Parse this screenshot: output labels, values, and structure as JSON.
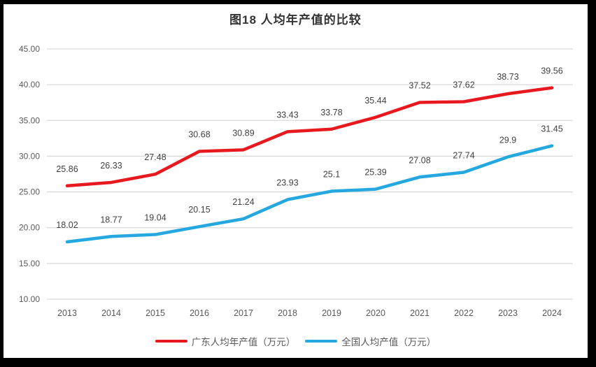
{
  "chart_data": {
    "type": "line",
    "title": "图18 人均年产值的比较",
    "categories": [
      "2013",
      "2014",
      "2015",
      "2016",
      "2017",
      "2018",
      "2019",
      "2020",
      "2021",
      "2022",
      "2023",
      "2024"
    ],
    "series": [
      {
        "name": "广东人均年产值（万元）",
        "color": "#e8191e",
        "values": [
          25.86,
          26.33,
          27.48,
          30.68,
          30.89,
          33.43,
          33.78,
          35.44,
          37.52,
          37.62,
          38.73,
          39.56
        ]
      },
      {
        "name": "全国人均产值（万元）",
        "color": "#25a8e0",
        "values": [
          18.02,
          18.77,
          19.04,
          20.15,
          21.24,
          23.93,
          25.1,
          25.39,
          27.08,
          27.74,
          29.9,
          31.45
        ]
      }
    ],
    "ylim": [
      10,
      45
    ],
    "ytick_step": 5,
    "ytick_labels": [
      "10.00",
      "15.00",
      "20.00",
      "25.00",
      "30.00",
      "35.00",
      "40.00",
      "45.00"
    ],
    "xlabel": "",
    "ylabel": "",
    "grid": true,
    "data_labels": true,
    "legend_position": "bottom"
  },
  "colors": {
    "grid": "#d9d9d9",
    "axis_text": "#595959",
    "label_text": "#404040",
    "title_text": "#333333",
    "frame": "#000000",
    "background": "#ffffff"
  }
}
